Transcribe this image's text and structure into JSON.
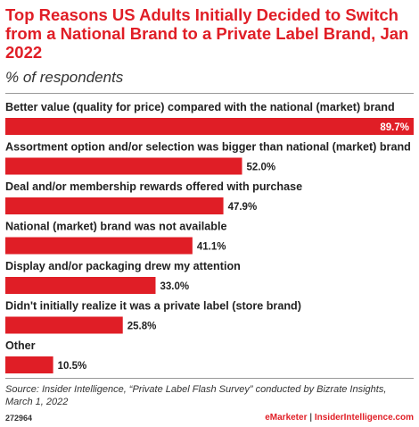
{
  "chart_data": {
    "type": "bar",
    "orientation": "horizontal",
    "title": "Top Reasons US Adults Initially Decided to Switch from a National Brand to a Private Label Brand, Jan 2022",
    "subtitle": "% of respondents",
    "categories": [
      "Better value (quality for price) compared with the national (market) brand",
      "Assortment option and/or selection was bigger than national (market) brand",
      "Deal and/or membership rewards offered with purchase",
      "National (market) brand was not available",
      "Display and/or packaging drew my attention",
      "Didn't initially realize it was a private label (store brand)",
      "Other"
    ],
    "values": [
      89.7,
      52.0,
      47.9,
      41.1,
      33.0,
      25.8,
      10.5
    ],
    "value_labels": [
      "89.7%",
      "52.0%",
      "47.9%",
      "41.1%",
      "33.0%",
      "25.8%",
      "10.5%"
    ],
    "xlim": [
      0,
      89.7
    ],
    "grid": false,
    "bar_color": "#e01e26"
  },
  "source": "Source: Insider Intelligence, “Private Label Flash Survey” conducted by Bizrate Insights, March 1, 2022",
  "footer": {
    "chart_id": "272964",
    "brand_emarketer": "eMarketer",
    "separator": " | ",
    "brand_insider": "InsiderIntelligence.com"
  }
}
